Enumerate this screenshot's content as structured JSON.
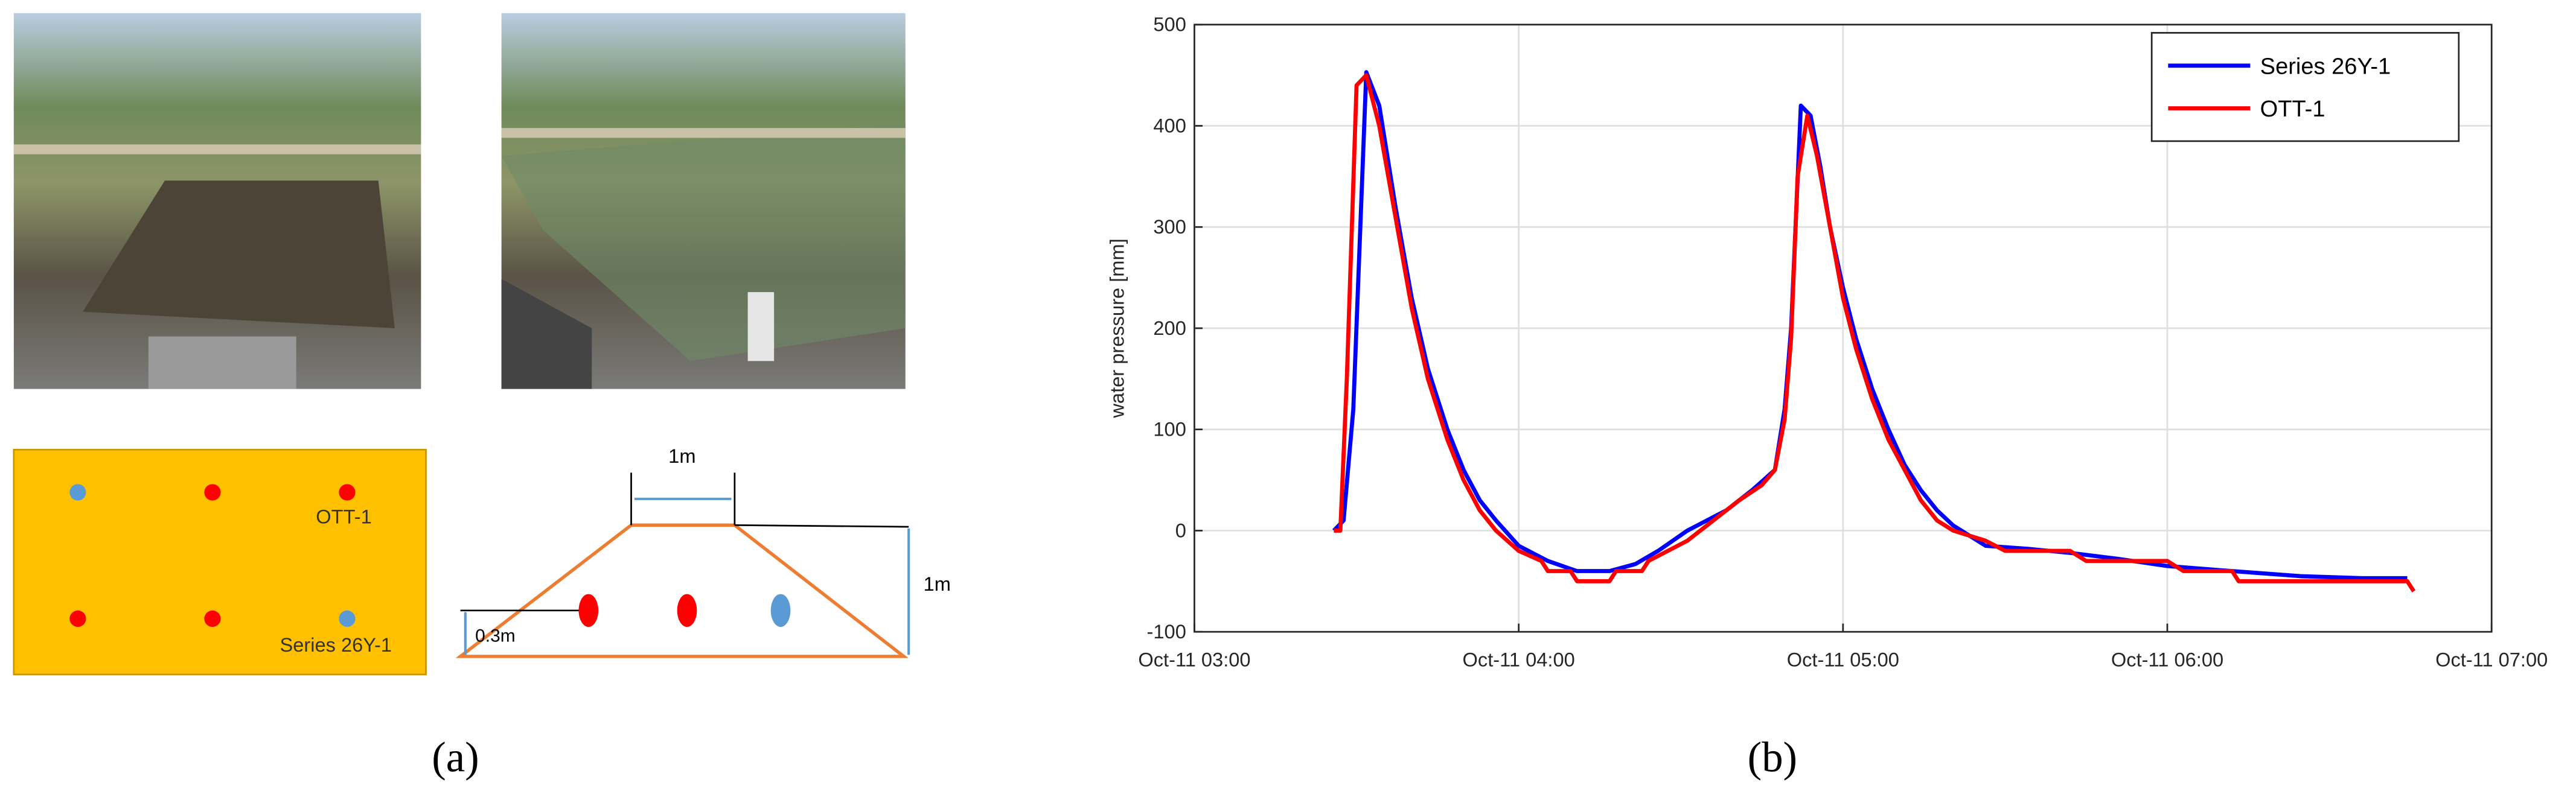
{
  "panel_a": {
    "diagram": {
      "plan_labels": [
        "OTT-1",
        "Series 26Y-1"
      ],
      "top_width": "1m",
      "height": "1m",
      "depth": "0.3m"
    },
    "caption": "(a)"
  },
  "panel_b_caption": "(b)",
  "chart_data": {
    "type": "line",
    "ylabel": "water pressure [mm]",
    "xlim": [
      3,
      7
    ],
    "xticks": [
      {
        "value": 3,
        "label": "Oct-11 03:00"
      },
      {
        "value": 4,
        "label": "Oct-11 04:00"
      },
      {
        "value": 5,
        "label": "Oct-11 05:00"
      },
      {
        "value": 6,
        "label": "Oct-11 06:00"
      },
      {
        "value": 7,
        "label": "Oct-11 07:00"
      }
    ],
    "ylim": [
      -100,
      500
    ],
    "yticks": [
      -100,
      0,
      100,
      200,
      300,
      400,
      500
    ],
    "grid": true,
    "legend": "top-right",
    "series": [
      {
        "name": "Series 26Y-1",
        "color": "#0000ff",
        "x": [
          3.43,
          3.46,
          3.49,
          3.53,
          3.57,
          3.62,
          3.67,
          3.72,
          3.78,
          3.83,
          3.88,
          3.93,
          4.0,
          4.09,
          4.18,
          4.28,
          4.36,
          4.43,
          4.52,
          4.64,
          4.72,
          4.79,
          4.82,
          4.84,
          4.87,
          4.9,
          4.93,
          4.96,
          5.0,
          5.04,
          5.09,
          5.14,
          5.19,
          5.24,
          5.29,
          5.34,
          5.44,
          5.57,
          5.7,
          5.85,
          6.0,
          6.2,
          6.41,
          6.6,
          6.74
        ],
        "values": [
          0,
          10,
          120,
          453,
          420,
          320,
          230,
          160,
          100,
          60,
          30,
          10,
          -15,
          -30,
          -40,
          -40,
          -33,
          -20,
          0,
          20,
          40,
          60,
          120,
          200,
          420,
          410,
          360,
          300,
          240,
          190,
          140,
          100,
          65,
          40,
          20,
          5,
          -15,
          -18,
          -22,
          -28,
          -35,
          -40,
          -45,
          -47,
          -47
        ]
      },
      {
        "name": "OTT-1",
        "color": "#ff0000",
        "x": [
          3.43,
          3.45,
          3.47,
          3.5,
          3.53,
          3.57,
          3.62,
          3.67,
          3.72,
          3.78,
          3.83,
          3.88,
          3.93,
          4.0,
          4.07,
          4.09,
          4.16,
          4.18,
          4.28,
          4.3,
          4.38,
          4.4,
          4.46,
          4.52,
          4.6,
          4.68,
          4.75,
          4.79,
          4.82,
          4.84,
          4.86,
          4.89,
          4.92,
          4.96,
          5.0,
          5.04,
          5.09,
          5.14,
          5.19,
          5.24,
          5.29,
          5.34,
          5.44,
          5.5,
          5.7,
          5.75,
          6.0,
          6.05,
          6.2,
          6.22,
          6.74,
          6.76
        ],
        "values": [
          0,
          0,
          150,
          440,
          450,
          400,
          310,
          220,
          150,
          90,
          50,
          20,
          0,
          -20,
          -30,
          -40,
          -40,
          -50,
          -50,
          -40,
          -40,
          -30,
          -20,
          -10,
          10,
          30,
          45,
          60,
          110,
          190,
          350,
          410,
          370,
          300,
          230,
          180,
          130,
          90,
          60,
          30,
          10,
          0,
          -10,
          -20,
          -20,
          -30,
          -30,
          -40,
          -40,
          -50,
          -50,
          -60
        ]
      }
    ]
  }
}
